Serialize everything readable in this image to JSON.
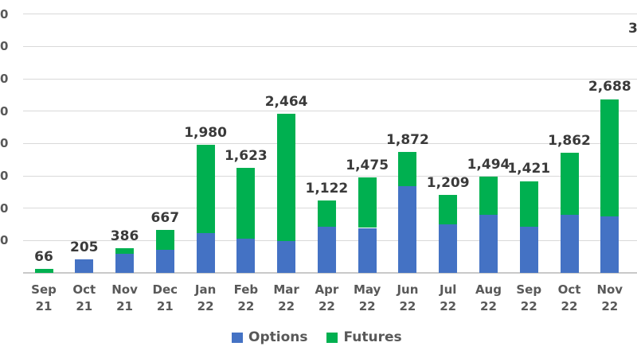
{
  "chart_data": {
    "type": "bar",
    "stacked": true,
    "title": "",
    "categories": [
      {
        "month": "Sep",
        "year": "21"
      },
      {
        "month": "Oct",
        "year": "21"
      },
      {
        "month": "Nov",
        "year": "21"
      },
      {
        "month": "Dec",
        "year": "21"
      },
      {
        "month": "Jan",
        "year": "22"
      },
      {
        "month": "Feb",
        "year": "22"
      },
      {
        "month": "Mar",
        "year": "22"
      },
      {
        "month": "Apr",
        "year": "22"
      },
      {
        "month": "May",
        "year": "22"
      },
      {
        "month": "Jun",
        "year": "22"
      },
      {
        "month": "Jul",
        "year": "22"
      },
      {
        "month": "Aug",
        "year": "22"
      },
      {
        "month": "Sep",
        "year": "22"
      },
      {
        "month": "Oct",
        "year": "22"
      },
      {
        "month": "Nov",
        "year": "22"
      }
    ],
    "series": [
      {
        "name": "Options",
        "color": "#4472C4",
        "values": [
          0,
          205,
          300,
          360,
          620,
          525,
          490,
          715,
          695,
          1345,
          750,
          895,
          710,
          900,
          875
        ]
      },
      {
        "name": "Futures",
        "color": "#00B050",
        "values": [
          66,
          0,
          86,
          307,
          1360,
          1098,
          1974,
          407,
          780,
          527,
          459,
          599,
          711,
          962,
          1813
        ]
      }
    ],
    "totals": [
      66,
      205,
      386,
      667,
      1980,
      1623,
      2464,
      1122,
      1475,
      1872,
      1209,
      1494,
      1421,
      1862,
      2688
    ],
    "total_labels": [
      "66",
      "205",
      "386",
      "667",
      "1,980",
      "1,623",
      "2,464",
      "1,122",
      "1,475",
      "1,872",
      "1,209",
      "1,494",
      "1,421",
      "1,862",
      "2,688"
    ],
    "clipped_right_label_fragment": "3",
    "y_axis": {
      "visible_label_fragments": [
        "0",
        "0",
        "0",
        "0",
        "0",
        "0",
        "0",
        "0"
      ],
      "ylim": [
        0,
        4000
      ],
      "gridline_step": 500,
      "grid": true,
      "labels_clipped": true
    },
    "legend": {
      "position": "bottom-center",
      "items": [
        {
          "label": "Options",
          "color": "#4472C4"
        },
        {
          "label": "Futures",
          "color": "#00B050"
        }
      ]
    }
  },
  "colors": {
    "background": "#FFFFFF",
    "gridline": "#D9D9D9",
    "axis_line": "#C9C9C9",
    "data_label": "#3A3A3A",
    "axis_label": "#595959",
    "options_bar": "#4472C4",
    "futures_bar": "#00B050"
  }
}
